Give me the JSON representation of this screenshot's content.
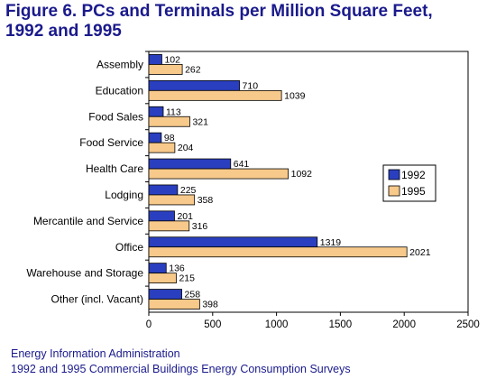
{
  "title": {
    "line1": "Figure 6.  PCs and Terminals per Million Square Feet,",
    "line2": "1992 and 1995"
  },
  "footer": {
    "line1": "Energy Information Administration",
    "line2": "1992 and 1995 Commercial Buildings Energy Consumption Surveys"
  },
  "colors": {
    "series_1992": "#2a3fbf",
    "series_1995": "#f7c98a",
    "title": "#1a1a8c"
  },
  "chart_data": {
    "type": "bar",
    "orientation": "horizontal",
    "categories": [
      "Assembly",
      "Education",
      "Food Sales",
      "Food Service",
      "Health Care",
      "Lodging",
      "Mercantile and Service",
      "Office",
      "Warehouse and Storage",
      "Other (incl. Vacant)"
    ],
    "series": [
      {
        "name": "1992",
        "values": [
          102,
          710,
          113,
          98,
          641,
          225,
          201,
          1319,
          136,
          258
        ]
      },
      {
        "name": "1995",
        "values": [
          262,
          1039,
          321,
          204,
          1092,
          358,
          316,
          2021,
          215,
          398
        ]
      }
    ],
    "xlim": [
      0,
      2500
    ],
    "xticks": [
      0,
      500,
      1000,
      1500,
      2000,
      2500
    ],
    "legend_position": "right",
    "grid": false
  }
}
